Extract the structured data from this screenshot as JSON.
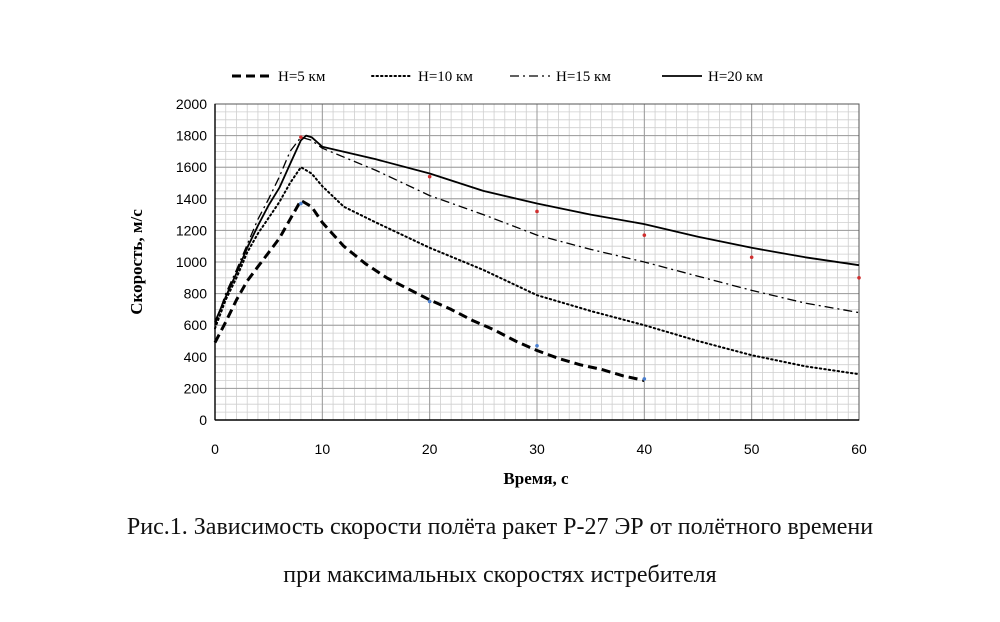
{
  "chart_data": {
    "type": "line",
    "xlabel": "Время, с",
    "ylabel": "Скорость, м/с",
    "xlim": [
      0,
      60
    ],
    "ylim": [
      0,
      2000
    ],
    "xticks": [
      0,
      10,
      20,
      30,
      40,
      50,
      60
    ],
    "yticks": [
      0,
      200,
      400,
      600,
      800,
      1000,
      1200,
      1400,
      1600,
      1800,
      2000
    ],
    "grid": true,
    "legend_position": "top",
    "series": [
      {
        "name": "H=5 км",
        "style": "dashed",
        "x": [
          0,
          1,
          2,
          3,
          4,
          5,
          6,
          7,
          8,
          9,
          10,
          12,
          14,
          16,
          18,
          20,
          22,
          24,
          26,
          28,
          30,
          32,
          34,
          36,
          38,
          40
        ],
        "y": [
          490,
          620,
          760,
          880,
          970,
          1060,
          1150,
          1270,
          1390,
          1350,
          1250,
          1100,
          990,
          900,
          830,
          760,
          700,
          630,
          570,
          500,
          440,
          390,
          350,
          320,
          280,
          250
        ]
      },
      {
        "name": "H=10 км",
        "style": "dotted",
        "x": [
          0,
          1,
          2,
          3,
          4,
          5,
          6,
          7,
          8,
          9,
          10,
          12,
          15,
          20,
          25,
          30,
          35,
          40,
          45,
          50,
          55,
          60
        ],
        "y": [
          580,
          760,
          900,
          1060,
          1180,
          1280,
          1380,
          1500,
          1600,
          1560,
          1480,
          1350,
          1250,
          1090,
          950,
          790,
          690,
          600,
          500,
          410,
          340,
          290
        ]
      },
      {
        "name": "H=15 км",
        "style": "dashdot",
        "x": [
          0,
          1,
          2,
          3,
          4,
          5,
          6,
          7,
          8,
          9,
          10,
          15,
          20,
          25,
          30,
          35,
          40,
          45,
          50,
          55,
          60
        ],
        "y": [
          600,
          800,
          950,
          1110,
          1270,
          1400,
          1540,
          1700,
          1790,
          1770,
          1720,
          1580,
          1420,
          1300,
          1170,
          1080,
          1000,
          910,
          820,
          740,
          680
        ]
      },
      {
        "name": "H=20 км",
        "style": "solid",
        "x": [
          0,
          1,
          2,
          3,
          4,
          5,
          6,
          7,
          8,
          8.5,
          9,
          10,
          15,
          20,
          25,
          30,
          35,
          40,
          45,
          50,
          55,
          60
        ],
        "y": [
          620,
          780,
          930,
          1090,
          1230,
          1360,
          1470,
          1620,
          1770,
          1800,
          1790,
          1730,
          1650,
          1560,
          1450,
          1370,
          1300,
          1240,
          1160,
          1090,
          1030,
          980
        ]
      }
    ],
    "markers": [
      {
        "color": "#d03030",
        "x": [
          8,
          20,
          30,
          40,
          50,
          60
        ],
        "y": [
          1790,
          1540,
          1320,
          1170,
          1030,
          900
        ]
      },
      {
        "color": "#4a7fd0",
        "x": [
          8,
          20,
          30,
          40
        ],
        "y": [
          1370,
          750,
          470,
          260
        ]
      }
    ]
  },
  "caption": {
    "line1": "Рис.1. Зависимость скорости полёта ракет Р-27 ЭР от полётного времени",
    "line2": "при максимальных скоростях истребителя"
  }
}
